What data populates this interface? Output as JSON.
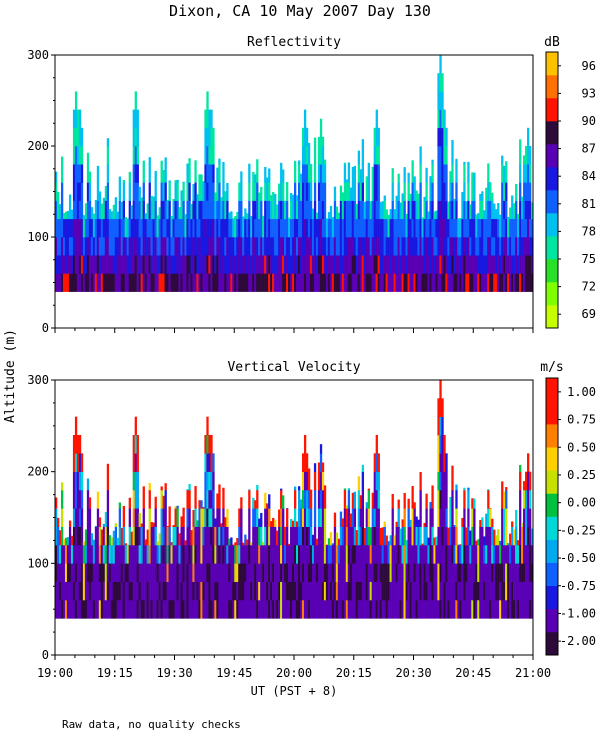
{
  "figure": {
    "title": "Dixon, CA 10 May 2007  Day 130",
    "ylabel": "Altitude (m)",
    "xlabel": "UT  (PST + 8)",
    "footnote": "Raw data, no quality checks"
  },
  "chart_data": [
    {
      "type": "heatmap",
      "title": "Reflectivity",
      "xlabel": "UT  (PST + 8)",
      "ylabel": "Altitude (m)",
      "x_range": [
        "19:00",
        "21:00"
      ],
      "ylim": [
        0,
        300
      ],
      "y_ticks": [
        0,
        100,
        200,
        300
      ],
      "x_tick_labels": [
        "19:00",
        "19:15",
        "19:30",
        "19:45",
        "20:00",
        "20:15",
        "20:30",
        "20:45",
        "21:00"
      ],
      "data_bottom_m": 40,
      "colorbar": {
        "unit": "dB",
        "range": [
          67.5,
          97.5
        ],
        "tick_labels": [
          "69",
          "72",
          "75",
          "78",
          "81",
          "84",
          "87",
          "90",
          "93",
          "96"
        ],
        "colors": [
          "#c8ff00",
          "#7fff00",
          "#28e028",
          "#00e6a0",
          "#00c0f0",
          "#1060ff",
          "#1818e0",
          "#5a00b4",
          "#2e0a3a",
          "#ff1400",
          "#ff7000",
          "#ffc000"
        ]
      },
      "echo_top_peaks_m": [
        {
          "time": "19:05",
          "top": 260
        },
        {
          "time": "19:06",
          "top": 240
        },
        {
          "time": "19:20",
          "top": 260
        },
        {
          "time": "19:38",
          "top": 260
        },
        {
          "time": "19:39",
          "top": 240
        },
        {
          "time": "20:03",
          "top": 240
        },
        {
          "time": "20:07",
          "top": 230
        },
        {
          "time": "20:21",
          "top": 240
        },
        {
          "time": "20:37",
          "top": 300
        },
        {
          "time": "20:38",
          "top": 240
        },
        {
          "time": "20:59",
          "top": 220
        }
      ]
    },
    {
      "type": "heatmap",
      "title": "Vertical Velocity",
      "xlabel": "UT  (PST + 8)",
      "ylabel": "Altitude (m)",
      "x_range": [
        "19:00",
        "21:00"
      ],
      "ylim": [
        0,
        300
      ],
      "y_ticks": [
        0,
        100,
        200,
        300
      ],
      "x_tick_labels": [
        "19:00",
        "19:15",
        "19:30",
        "19:45",
        "20:00",
        "20:15",
        "20:30",
        "20:45",
        "21:00"
      ],
      "data_bottom_m": 40,
      "colorbar": {
        "unit": "m/s",
        "tick_labels": [
          "-2.00",
          "-1.00",
          "-0.75",
          "-0.50",
          "-0.25",
          "0.00",
          "0.25",
          "0.50",
          "0.75",
          "1.00"
        ],
        "colors": [
          "#2e0a3a",
          "#5a00b4",
          "#1818e0",
          "#1060ff",
          "#00a8f0",
          "#00d8d8",
          "#00c040",
          "#c8e000",
          "#ffd000",
          "#ff8000",
          "#ff1400",
          "#ff1400"
        ]
      },
      "echo_top_peaks_m": [
        {
          "time": "19:05",
          "top": 260
        },
        {
          "time": "19:06",
          "top": 240
        },
        {
          "time": "19:20",
          "top": 260
        },
        {
          "time": "19:38",
          "top": 260
        },
        {
          "time": "19:39",
          "top": 240
        },
        {
          "time": "20:03",
          "top": 240
        },
        {
          "time": "20:07",
          "top": 230
        },
        {
          "time": "20:21",
          "top": 240
        },
        {
          "time": "20:37",
          "top": 300
        },
        {
          "time": "20:38",
          "top": 240
        },
        {
          "time": "20:59",
          "top": 220
        }
      ]
    }
  ]
}
